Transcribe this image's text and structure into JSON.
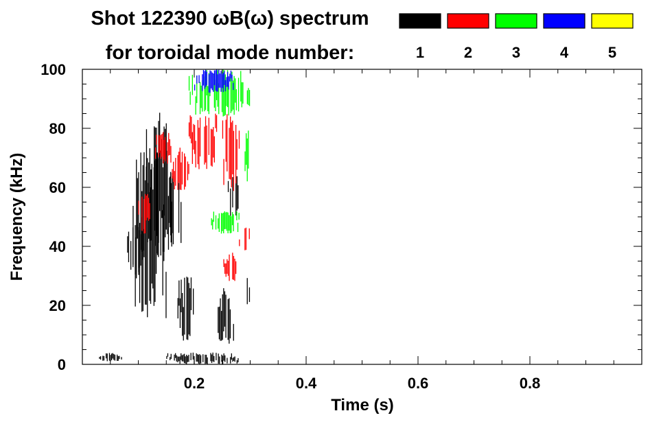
{
  "chart_data": {
    "type": "heatmap",
    "title": "Shot 122390 ωB(ω) spectrum",
    "subtitle": "for toroidal mode number:",
    "xlabel": "Time (s)",
    "ylabel": "Frequency (kHz)",
    "xlim": [
      0.0,
      1.0
    ],
    "ylim": [
      0,
      100
    ],
    "xticks": [
      0.2,
      0.4,
      0.6,
      0.8
    ],
    "xtick_labels": [
      "0.2",
      "0.4",
      "0.6",
      "0.8"
    ],
    "yticks": [
      0,
      20,
      40,
      60,
      80,
      100
    ],
    "ytick_labels": [
      "0",
      "20",
      "40",
      "60",
      "80",
      "100"
    ],
    "grid": false,
    "legend_placement": "top-right",
    "modes": [
      {
        "label": "1",
        "color": "#000000"
      },
      {
        "label": "2",
        "color": "#ff0000"
      },
      {
        "label": "3",
        "color": "#00ff00"
      },
      {
        "label": "4",
        "color": "#0000ff"
      },
      {
        "label": "5",
        "color": "#ffff00"
      }
    ],
    "series": [
      {
        "mode": "1",
        "regions": [
          {
            "t": [
              0.03,
              0.07
            ],
            "f": [
              1,
              4
            ]
          },
          {
            "t": [
              0.08,
              0.11
            ],
            "f": [
              28,
              50
            ]
          },
          {
            "t": [
              0.09,
              0.15
            ],
            "f": [
              15,
              72
            ]
          },
          {
            "t": [
              0.11,
              0.16
            ],
            "f": [
              36,
              86
            ]
          },
          {
            "t": [
              0.15,
              0.18
            ],
            "f": [
              40,
              66
            ]
          },
          {
            "t": [
              0.17,
              0.2
            ],
            "f": [
              8,
              30
            ]
          },
          {
            "t": [
              0.24,
              0.27
            ],
            "f": [
              6,
              26
            ]
          },
          {
            "t": [
              0.26,
              0.28
            ],
            "f": [
              48,
              64
            ]
          },
          {
            "t": [
              0.29,
              0.3
            ],
            "f": [
              20,
              30
            ]
          },
          {
            "t": [
              0.15,
              0.28
            ],
            "f": [
              0,
              4
            ]
          }
        ]
      },
      {
        "mode": "2",
        "regions": [
          {
            "t": [
              0.13,
              0.16
            ],
            "f": [
              68,
              79
            ]
          },
          {
            "t": [
              0.16,
              0.19
            ],
            "f": [
              59,
              74
            ]
          },
          {
            "t": [
              0.19,
              0.24
            ],
            "f": [
              66,
              85
            ]
          },
          {
            "t": [
              0.25,
              0.28
            ],
            "f": [
              58,
              85
            ]
          },
          {
            "t": [
              0.25,
              0.28
            ],
            "f": [
              28,
              38
            ]
          },
          {
            "t": [
              0.28,
              0.3
            ],
            "f": [
              38,
              48
            ]
          },
          {
            "t": [
              0.1,
              0.12
            ],
            "f": [
              44,
              58
            ]
          }
        ]
      },
      {
        "mode": "3",
        "regions": [
          {
            "t": [
              0.19,
              0.3
            ],
            "f": [
              84,
              100
            ]
          },
          {
            "t": [
              0.23,
              0.28
            ],
            "f": [
              44,
              52
            ]
          },
          {
            "t": [
              0.29,
              0.3
            ],
            "f": [
              60,
              80
            ]
          }
        ]
      },
      {
        "mode": "4",
        "regions": [
          {
            "t": [
              0.2,
              0.27
            ],
            "f": [
              92,
              100
            ]
          }
        ]
      },
      {
        "mode": "5",
        "regions": []
      }
    ]
  }
}
